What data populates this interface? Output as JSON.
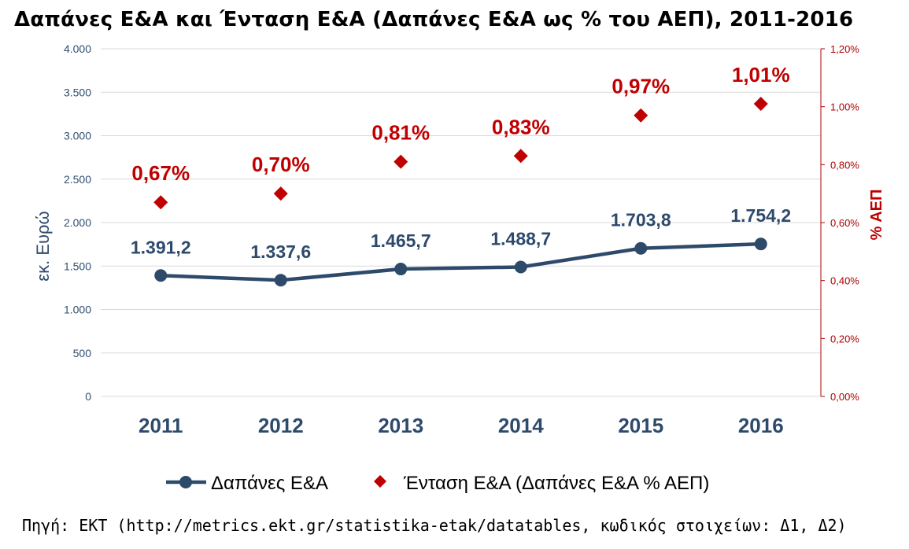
{
  "chart_data": {
    "type": "line",
    "title": "Δαπάνες Ε&Α και Ένταση Ε&Α (Δαπάνες Ε&Α ως % του ΑΕΠ), 2011-2016",
    "x": [
      "2011",
      "2012",
      "2013",
      "2014",
      "2015",
      "2016"
    ],
    "series": [
      {
        "name": "Δαπάνες Ε&Α",
        "axis": "left",
        "style": "line-with-markers",
        "color": "#2e4a6b",
        "values": [
          1391.2,
          1337.6,
          1465.7,
          1488.7,
          1703.8,
          1754.2
        ],
        "labels": [
          "1.391,2",
          "1.337,6",
          "1.465,7",
          "1.488,7",
          "1.703,8",
          "1.754,2"
        ]
      },
      {
        "name": "Ένταση Ε&Α (Δαπάνες Ε&Α % ΑΕΠ)",
        "axis": "right",
        "style": "diamond-markers",
        "color": "#c00000",
        "values": [
          0.67,
          0.7,
          0.81,
          0.83,
          0.97,
          1.01
        ],
        "labels": [
          "0,67%",
          "0,70%",
          "0,81%",
          "0,83%",
          "0,97%",
          "1,01%"
        ]
      }
    ],
    "y_left": {
      "label": "εκ. Ευρώ",
      "range": [
        0,
        4000
      ],
      "ticks": [
        0,
        500,
        1000,
        1500,
        2000,
        2500,
        3000,
        3500,
        4000
      ],
      "tick_labels": [
        "0",
        "500",
        "1.000",
        "1.500",
        "2.000",
        "2.500",
        "3.000",
        "3.500",
        "4.000"
      ]
    },
    "y_right": {
      "label": "% ΑΕΠ",
      "range": [
        0,
        1.2
      ],
      "ticks": [
        0,
        0.2,
        0.4,
        0.6,
        0.8,
        1.0,
        1.2
      ],
      "tick_labels": [
        "0,00%",
        "0,20%",
        "0,40%",
        "0,60%",
        "0,80%",
        "1,00%",
        "1,20%"
      ]
    },
    "grid": "horizontal",
    "legend": "bottom"
  },
  "source": "Πηγή: ΕΚΤ (http://metrics.ekt.gr/statistika-etak/datatables, κωδικός στοιχείων: Δ1, Δ2)"
}
